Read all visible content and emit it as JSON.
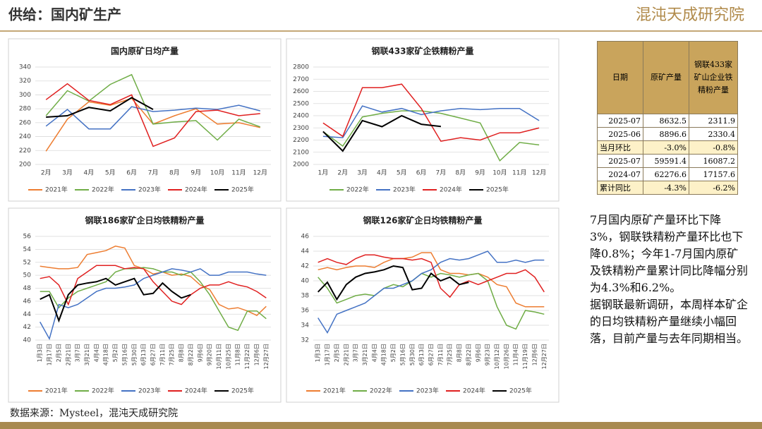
{
  "header": {
    "title": "供给：国内矿生产",
    "brand": "混沌天成研究院"
  },
  "chart_data": [
    {
      "type": "line",
      "title": "国内原矿日均产量",
      "categories": [
        "2月",
        "3月",
        "4月",
        "5月",
        "6月",
        "7月",
        "8月",
        "9月",
        "10月",
        "11月",
        "12月"
      ],
      "ylim": [
        200,
        340
      ],
      "yticks": [
        200,
        220,
        240,
        260,
        280,
        300,
        320,
        340
      ],
      "grid": true,
      "series": [
        {
          "name": "2021年",
          "color": "#ed7d31",
          "values": [
            219,
            265,
            290,
            285,
            295,
            258,
            270,
            280,
            258,
            260,
            253
          ]
        },
        {
          "name": "2022年",
          "color": "#70ad47",
          "values": [
            270,
            306,
            291,
            315,
            329,
            258,
            261,
            263,
            235,
            265,
            254
          ]
        },
        {
          "name": "2023年",
          "color": "#4472c4",
          "values": [
            255,
            279,
            251,
            251,
            283,
            276,
            278,
            281,
            279,
            285,
            277
          ]
        },
        {
          "name": "2024年",
          "color": "#e02020",
          "values": [
            293,
            316,
            292,
            286,
            300,
            226,
            238,
            276,
            278,
            270,
            273
          ]
        },
        {
          "name": "2025年",
          "color": "#000000",
          "values": [
            268,
            270,
            282,
            277,
            296,
            279,
            null,
            null,
            null,
            null,
            null
          ]
        }
      ]
    },
    {
      "type": "line",
      "title": "钢联433家矿企铁精粉产量",
      "categories": [
        "1月",
        "2月",
        "3月",
        "4月",
        "5月",
        "6月",
        "7月",
        "8月",
        "9月",
        "10月",
        "11月",
        "12月"
      ],
      "ylim": [
        2000,
        2800
      ],
      "yticks": [
        2000,
        2100,
        2200,
        2300,
        2400,
        2500,
        2600,
        2700,
        2800
      ],
      "grid": true,
      "series": [
        {
          "name": "2022年",
          "color": "#70ad47",
          "values": [
            2270,
            2150,
            2390,
            2420,
            2440,
            2440,
            2420,
            2380,
            2340,
            2030,
            2180,
            2160
          ]
        },
        {
          "name": "2023年",
          "color": "#4472c4",
          "values": [
            2230,
            2220,
            2480,
            2430,
            2460,
            2410,
            2440,
            2460,
            2450,
            2460,
            2460,
            2360
          ]
        },
        {
          "name": "2024年",
          "color": "#e02020",
          "values": [
            2340,
            2230,
            2630,
            2630,
            2660,
            2460,
            2190,
            2220,
            2200,
            2260,
            2260,
            2300
          ]
        },
        {
          "name": "2025年",
          "color": "#000000",
          "values": [
            2270,
            2110,
            2360,
            2310,
            2400,
            2330,
            2312,
            null,
            null,
            null,
            null,
            null
          ]
        }
      ]
    },
    {
      "type": "line",
      "title": "钢联186家矿企日均铁精粉产量",
      "categories": [
        "1月3日",
        "1月17日",
        "2月5日",
        "2月21日",
        "3月7日",
        "3月21日",
        "4月4日",
        "4月18日",
        "5月2日",
        "5月16日",
        "5月30日",
        "6月13日",
        "6月27日",
        "7月11日",
        "7月25日",
        "8月8日",
        "8月22日",
        "9月6日",
        "9月20日",
        "10月11日",
        "10月25日",
        "11月8日",
        "11月22日",
        "12月6日",
        "12月27日"
      ],
      "ylim": [
        40,
        56
      ],
      "yticks": [
        40,
        42,
        44,
        46,
        48,
        50,
        52,
        54,
        56
      ],
      "grid": true,
      "series": [
        {
          "name": "2021年",
          "color": "#ed7d31",
          "values": [
            51.4,
            51.2,
            51,
            51,
            51.2,
            53.2,
            53.5,
            53.8,
            54.5,
            54.2,
            51.5,
            51,
            50.2,
            50.5,
            50,
            50.2,
            49.8,
            48.5,
            47.8,
            45.5,
            44.8,
            45,
            44.5,
            43.8,
            45.2
          ]
        },
        {
          "name": "2022年",
          "color": "#70ad47",
          "values": [
            47.5,
            47.5,
            45,
            46.5,
            47.5,
            48,
            48.5,
            49,
            50.5,
            51,
            51,
            51.2,
            51,
            50.5,
            50.5,
            50,
            50.5,
            49,
            47,
            44.5,
            42,
            41.5,
            44.5,
            44.5,
            43.3
          ]
        },
        {
          "name": "2023年",
          "color": "#4472c4",
          "values": [
            42.8,
            40.2,
            45.5,
            45,
            45.5,
            46.5,
            47.5,
            48,
            48,
            48.2,
            48.5,
            49.5,
            50,
            50.5,
            51,
            50.8,
            50.5,
            51,
            50,
            50,
            50.5,
            50.5,
            50.5,
            50.2,
            50
          ]
        },
        {
          "name": "2024年",
          "color": "#e02020",
          "values": [
            49.5,
            49.8,
            48.5,
            45.5,
            49.5,
            50.5,
            51.5,
            51.5,
            51.5,
            51,
            51.2,
            51,
            49,
            47.5,
            46,
            45.5,
            47,
            48,
            48.5,
            48.5,
            49,
            48.5,
            48.2,
            47.5,
            46.5
          ]
        },
        {
          "name": "2025年",
          "color": "#000000",
          "values": [
            46.3,
            47,
            43,
            47,
            48.5,
            48.8,
            49,
            49.5,
            48.5,
            49,
            49.5,
            47,
            47.2,
            48.8,
            47.5,
            46.5,
            47,
            null,
            null,
            null,
            null,
            null,
            null,
            null,
            null
          ]
        }
      ]
    },
    {
      "type": "line",
      "title": "钢联126家矿企日均铁精粉产量",
      "categories": [
        "1月3日",
        "1月17日",
        "2月5日",
        "2月21日",
        "3月7日",
        "3月21日",
        "4月4日",
        "4月18日",
        "5月2日",
        "5月16日",
        "5月30日",
        "6月13日",
        "6月27日",
        "7月11日",
        "7月25日",
        "8月8日",
        "8月22日",
        "9月6日",
        "9月23日",
        "10月12日",
        "10月26日",
        "11月4日",
        "11月19日",
        "12月6日",
        "12月27日"
      ],
      "ylim": [
        32,
        46
      ],
      "yticks": [
        32,
        34,
        36,
        38,
        40,
        42,
        44,
        46
      ],
      "grid": true,
      "series": [
        {
          "name": "2021年",
          "color": "#ed7d31",
          "values": [
            41.5,
            41.8,
            41.5,
            41.8,
            42,
            42,
            41.8,
            42.5,
            43,
            43,
            43.2,
            43.8,
            43.8,
            41.5,
            41,
            41,
            40.8,
            41,
            40.5,
            39.5,
            39.2,
            37,
            36.5,
            36.5,
            36.5
          ]
        },
        {
          "name": "2022年",
          "color": "#70ad47",
          "values": [
            40.5,
            39,
            37,
            37.5,
            38,
            38.2,
            38,
            39,
            39.5,
            39.2,
            40,
            41,
            40.5,
            41,
            40.8,
            40.5,
            40.8,
            41,
            40,
            36.5,
            34,
            33.5,
            36,
            35.8,
            35.5
          ]
        },
        {
          "name": "2023年",
          "color": "#4472c4",
          "values": [
            35,
            33,
            35.5,
            36,
            36.5,
            37,
            38,
            39,
            39,
            39.5,
            40,
            41,
            41.5,
            42.5,
            43,
            42.8,
            43,
            43.5,
            44,
            42.5,
            42.5,
            42.8,
            42.5,
            42.8,
            42.8
          ]
        },
        {
          "name": "2024年",
          "color": "#e02020",
          "values": [
            42.5,
            43,
            42.5,
            42.2,
            43,
            43.5,
            43.5,
            43.2,
            43,
            43,
            42.8,
            43,
            42.5,
            39,
            37.8,
            39.5,
            40,
            39.5,
            40,
            40.5,
            41,
            41,
            41.5,
            40.5,
            38.5
          ]
        },
        {
          "name": "2025年",
          "color": "#000000",
          "values": [
            38.5,
            39.8,
            37.5,
            39.5,
            40.5,
            41,
            41.2,
            41.5,
            42,
            41.8,
            38.8,
            39,
            41,
            40,
            40.5,
            39.5,
            39.8,
            null,
            null,
            null,
            null,
            null,
            null,
            null,
            null
          ]
        }
      ]
    }
  ],
  "table": {
    "columns": [
      "日期",
      "原矿产量",
      "钢联433家矿山企业铁精粉产量"
    ],
    "rows": [
      [
        "2025-07",
        "8632.5",
        "2311.9"
      ],
      [
        "2025-06",
        "8896.6",
        "2330.4"
      ],
      [
        "当月环比",
        "-3.0%",
        "-0.8%"
      ],
      [
        "2025-07",
        "59591.4",
        "16087.2"
      ],
      [
        "2024-07",
        "62276.6",
        "17157.6"
      ],
      [
        "累计同比",
        "-4.3%",
        "-6.2%"
      ]
    ]
  },
  "note": [
    "7月国内原矿产量环比下降3%，钢联铁精粉产量环比也下降0.8%；今年1-7月国内原矿及铁精粉产量累计同比降幅分别为4.3%和6.2%。",
    "据钢联最新调研，本周样本矿企的日均铁精粉产量继续小幅回落，目前产量与去年同期相当。"
  ],
  "source": "数据来源：Mysteel，混沌天成研究院"
}
